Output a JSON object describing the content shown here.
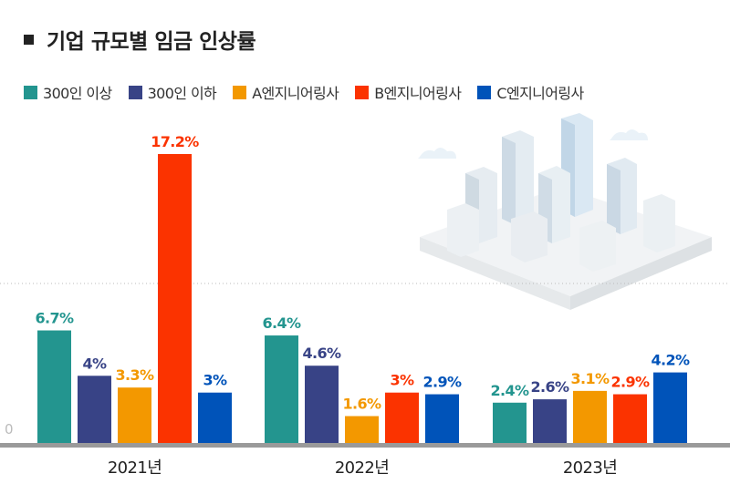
{
  "title": "기업 규모별 임금 인상률",
  "chart_data": {
    "type": "bar",
    "title": "기업 규모별 임금 인상률",
    "categories": [
      "2021년",
      "2022년",
      "2023년"
    ],
    "series": [
      {
        "name": "300인 이상",
        "color": "#23958f",
        "values": [
          6.7,
          6.4,
          2.4
        ],
        "labels": [
          "6.7%",
          "6.4%",
          "2.4%"
        ]
      },
      {
        "name": "300인 이하",
        "color": "#384386",
        "values": [
          4,
          4.6,
          2.6
        ],
        "labels": [
          "4%",
          "4.6%",
          "2.6%"
        ]
      },
      {
        "name": "A엔지니어링사",
        "color": "#f39800",
        "values": [
          3.3,
          1.6,
          3.1
        ],
        "labels": [
          "3.3%",
          "1.6%",
          "3.1%"
        ]
      },
      {
        "name": "B엔지니어링사",
        "color": "#fb3300",
        "values": [
          17.2,
          3,
          2.9
        ],
        "labels": [
          "17.2%",
          "3%",
          "2.9%"
        ]
      },
      {
        "name": "C엔지니어링사",
        "color": "#0053b9",
        "values": [
          3,
          2.9,
          4.2
        ],
        "labels": [
          "3%",
          "2.9%",
          "4.2%"
        ]
      }
    ],
    "y_tick_label": "0",
    "ylim": [
      0,
      17.2
    ],
    "legend_position": "top",
    "grid": false
  }
}
